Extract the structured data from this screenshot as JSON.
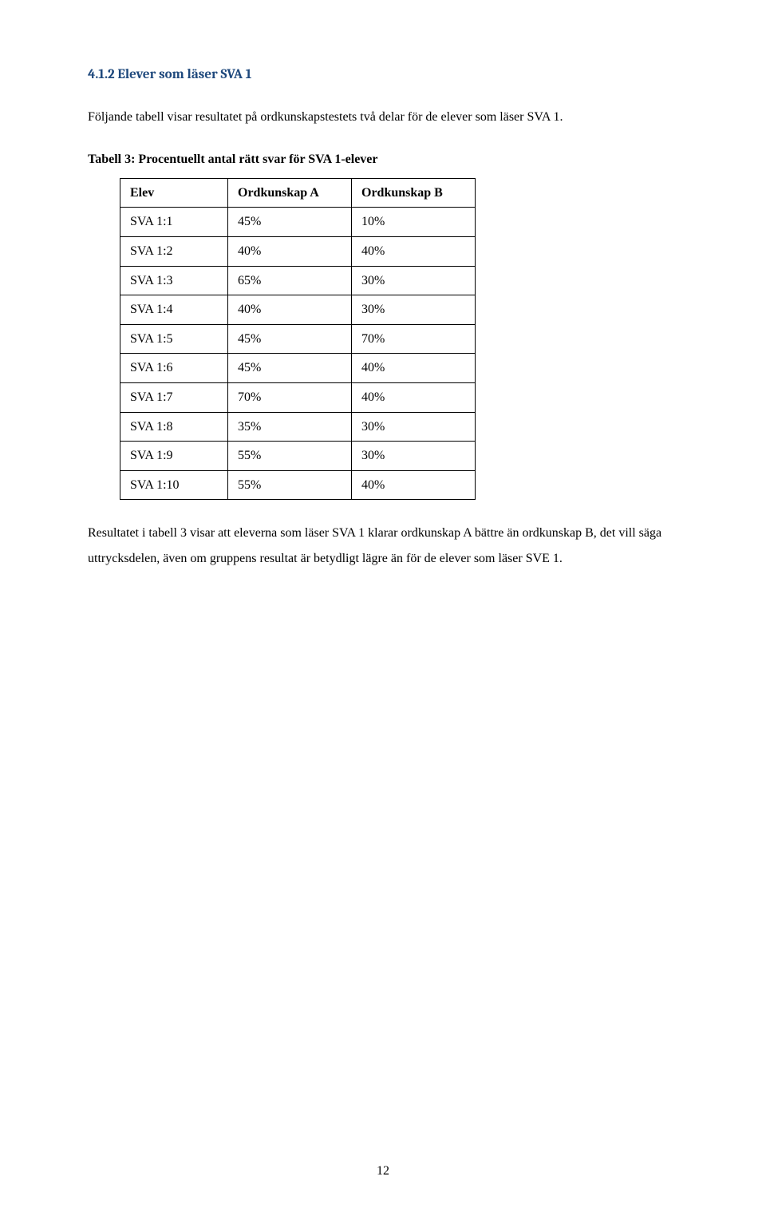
{
  "heading": "4.1.2 Elever som läser SVA 1",
  "intro": "Följande tabell visar resultatet på ordkunskapstestets två delar för de elever som läser SVA 1.",
  "table": {
    "caption": "Tabell 3: Procentuellt antal rätt svar för SVA 1-elever",
    "columns": [
      "Elev",
      "Ordkunskap A",
      "Ordkunskap B"
    ],
    "rows": [
      [
        "SVA 1:1",
        "45%",
        "10%"
      ],
      [
        "SVA 1:2",
        "40%",
        "40%"
      ],
      [
        "SVA 1:3",
        "65%",
        "30%"
      ],
      [
        "SVA 1:4",
        "40%",
        "30%"
      ],
      [
        "SVA 1:5",
        "45%",
        "70%"
      ],
      [
        "SVA 1:6",
        "45%",
        "40%"
      ],
      [
        "SVA 1:7",
        "70%",
        "40%"
      ],
      [
        "SVA 1:8",
        "35%",
        "30%"
      ],
      [
        "SVA 1:9",
        "55%",
        "30%"
      ],
      [
        "SVA 1:10",
        "55%",
        "40%"
      ]
    ]
  },
  "result": "Resultatet i tabell 3 visar att eleverna som läser SVA 1 klarar ordkunskap A bättre än ordkunskap B, det vill säga uttrycksdelen, även om gruppens resultat är betydligt lägre än för de elever som läser SVE 1.",
  "page_number": "12"
}
